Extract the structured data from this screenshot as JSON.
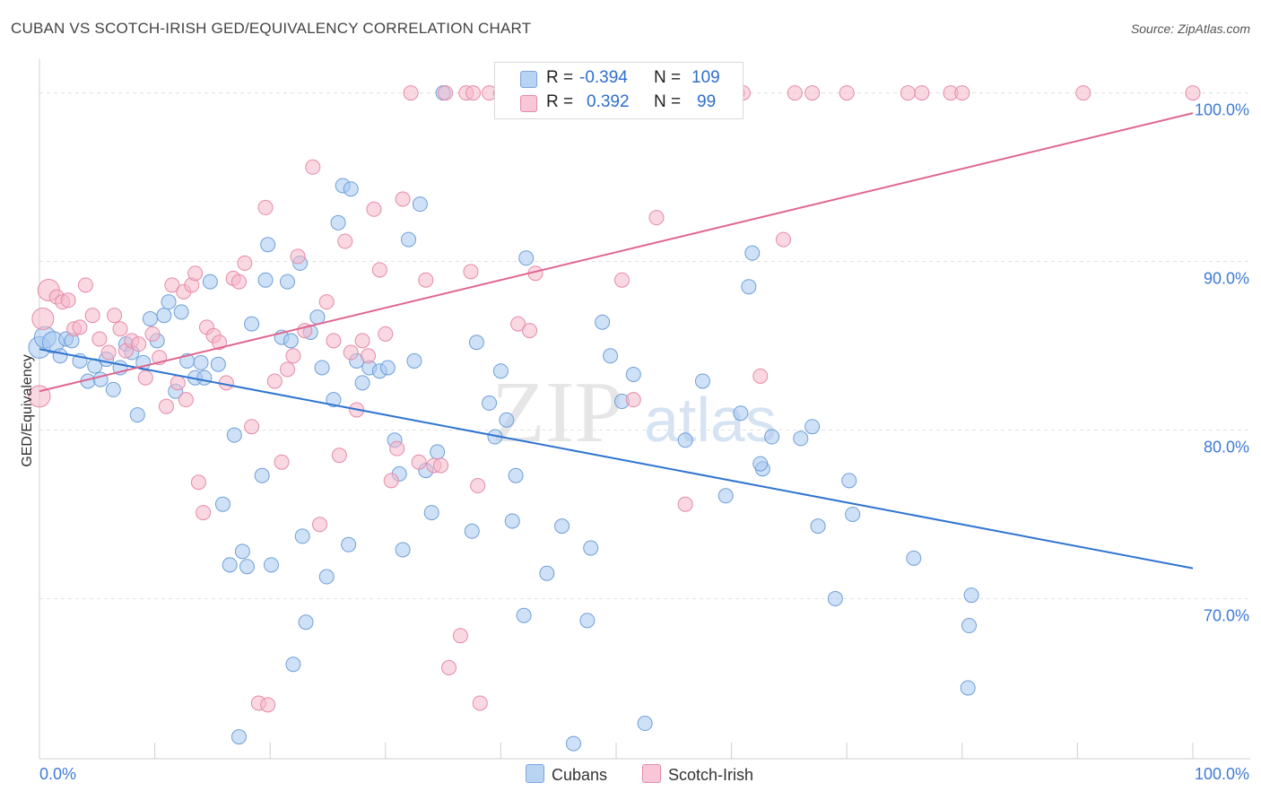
{
  "title": "CUBAN VS SCOTCH-IRISH GED/EQUIVALENCY CORRELATION CHART",
  "source": "Source: ZipAtlas.com",
  "watermark": {
    "zip": "ZIP",
    "atlas": "atlas"
  },
  "legend": {
    "rows": [
      {
        "r_label": "R =",
        "r_value": "-0.394",
        "n_label": "N =",
        "n_value": "109"
      },
      {
        "r_label": "R =",
        "r_value": "0.392",
        "n_label": "N =",
        "n_value": "99"
      }
    ]
  },
  "colors": {
    "cubans_fill": "#a8c8f0",
    "cubans_stroke": "#6f9fd8",
    "cubans_line": "#2f74d0",
    "scotch_fill": "#f5b8cb",
    "scotch_stroke": "#e58aa8",
    "scotch_line": "#e0648f",
    "axis_text": "#3d7bd6",
    "grid": "#e3e3e3"
  },
  "chart_data": {
    "type": "scatter",
    "title": "CUBAN VS SCOTCH-IRISH GED/EQUIVALENCY CORRELATION CHART",
    "xlabel": "",
    "ylabel": "GED/Equivalency",
    "xlim": [
      0,
      100
    ],
    "ylim": [
      60.5,
      102
    ],
    "x_tick_labels": [
      "0.0%",
      "100.0%"
    ],
    "y_ticks": [
      70,
      80,
      90,
      100
    ],
    "y_tick_labels": [
      "70.0%",
      "80.0%",
      "90.0%",
      "100.0%"
    ],
    "series": [
      {
        "name": "Cubans",
        "r": -0.394,
        "n": 109,
        "trend": {
          "x": [
            0,
            100
          ],
          "y": [
            84.8,
            71.8
          ]
        },
        "points": [
          [
            0.0,
            84.9
          ],
          [
            0.5,
            85.5
          ],
          [
            1.2,
            85.2
          ],
          [
            1.8,
            84.4
          ],
          [
            2.3,
            85.4
          ],
          [
            2.8,
            85.3
          ],
          [
            3.5,
            84.1
          ],
          [
            4.2,
            82.9
          ],
          [
            4.8,
            83.8
          ],
          [
            5.3,
            83.0
          ],
          [
            5.8,
            84.2
          ],
          [
            6.4,
            82.4
          ],
          [
            7.0,
            83.7
          ],
          [
            7.5,
            85.1
          ],
          [
            8.0,
            84.6
          ],
          [
            8.5,
            80.9
          ],
          [
            9.0,
            84.0
          ],
          [
            9.6,
            86.6
          ],
          [
            10.2,
            85.3
          ],
          [
            10.8,
            86.8
          ],
          [
            11.2,
            87.6
          ],
          [
            11.8,
            82.3
          ],
          [
            12.3,
            87.0
          ],
          [
            12.8,
            84.1
          ],
          [
            13.5,
            83.1
          ],
          [
            14.0,
            84.0
          ],
          [
            14.3,
            83.1
          ],
          [
            14.8,
            88.8
          ],
          [
            15.5,
            83.9
          ],
          [
            15.9,
            75.6
          ],
          [
            16.5,
            72.0
          ],
          [
            16.9,
            79.7
          ],
          [
            17.3,
            61.8
          ],
          [
            17.6,
            72.8
          ],
          [
            18.0,
            71.9
          ],
          [
            18.4,
            86.3
          ],
          [
            19.3,
            77.3
          ],
          [
            19.6,
            88.9
          ],
          [
            19.8,
            91.0
          ],
          [
            20.1,
            72.0
          ],
          [
            21.0,
            85.5
          ],
          [
            21.5,
            88.8
          ],
          [
            21.8,
            85.3
          ],
          [
            22.0,
            66.1
          ],
          [
            22.6,
            89.9
          ],
          [
            22.8,
            73.7
          ],
          [
            23.1,
            68.6
          ],
          [
            23.5,
            85.8
          ],
          [
            24.1,
            86.7
          ],
          [
            24.5,
            83.7
          ],
          [
            24.9,
            71.3
          ],
          [
            25.5,
            81.8
          ],
          [
            25.9,
            92.3
          ],
          [
            26.3,
            94.5
          ],
          [
            26.8,
            73.2
          ],
          [
            27.0,
            94.3
          ],
          [
            27.5,
            84.1
          ],
          [
            28.0,
            82.8
          ],
          [
            28.6,
            83.7
          ],
          [
            29.5,
            83.5
          ],
          [
            30.2,
            83.7
          ],
          [
            30.8,
            79.4
          ],
          [
            31.2,
            77.4
          ],
          [
            31.5,
            72.9
          ],
          [
            32.0,
            91.3
          ],
          [
            32.5,
            84.1
          ],
          [
            33.0,
            93.4
          ],
          [
            33.5,
            77.6
          ],
          [
            34.0,
            75.1
          ],
          [
            34.5,
            78.7
          ],
          [
            35.0,
            100.0
          ],
          [
            37.5,
            74.0
          ],
          [
            37.9,
            85.2
          ],
          [
            39.0,
            81.6
          ],
          [
            39.5,
            79.6
          ],
          [
            40.0,
            83.5
          ],
          [
            40.5,
            80.6
          ],
          [
            41.0,
            74.6
          ],
          [
            41.3,
            77.3
          ],
          [
            42.0,
            69.0
          ],
          [
            42.2,
            90.2
          ],
          [
            44.0,
            71.5
          ],
          [
            45.3,
            74.3
          ],
          [
            46.3,
            61.4
          ],
          [
            47.5,
            68.7
          ],
          [
            47.8,
            73.0
          ],
          [
            48.8,
            86.4
          ],
          [
            49.5,
            84.4
          ],
          [
            50.5,
            81.7
          ],
          [
            51.5,
            83.3
          ],
          [
            52.5,
            62.6
          ],
          [
            56.0,
            79.4
          ],
          [
            57.5,
            82.9
          ],
          [
            59.5,
            76.1
          ],
          [
            60.8,
            81.0
          ],
          [
            61.8,
            90.5
          ],
          [
            61.5,
            88.5
          ],
          [
            62.7,
            77.7
          ],
          [
            62.5,
            78.0
          ],
          [
            63.5,
            79.6
          ],
          [
            66.0,
            79.5
          ],
          [
            67.0,
            80.2
          ],
          [
            67.5,
            74.3
          ],
          [
            69.0,
            70.0
          ],
          [
            70.2,
            77.0
          ],
          [
            70.5,
            75.0
          ],
          [
            75.8,
            72.4
          ],
          [
            80.5,
            64.7
          ],
          [
            80.6,
            68.4
          ],
          [
            80.8,
            70.2
          ]
        ]
      },
      {
        "name": "Scotch-Irish",
        "r": 0.392,
        "n": 99,
        "trend": {
          "x": [
            0,
            100
          ],
          "y": [
            82.3,
            98.8
          ]
        },
        "points": [
          [
            0.0,
            82.0
          ],
          [
            0.3,
            86.6
          ],
          [
            0.8,
            88.3
          ],
          [
            1.5,
            87.9
          ],
          [
            2.0,
            87.6
          ],
          [
            2.5,
            87.7
          ],
          [
            3.0,
            86.0
          ],
          [
            3.5,
            86.1
          ],
          [
            4.0,
            88.6
          ],
          [
            4.6,
            86.8
          ],
          [
            5.2,
            85.4
          ],
          [
            6.0,
            84.6
          ],
          [
            6.5,
            86.8
          ],
          [
            7.0,
            86.0
          ],
          [
            7.5,
            84.7
          ],
          [
            8.0,
            85.3
          ],
          [
            8.6,
            85.1
          ],
          [
            9.2,
            83.1
          ],
          [
            9.8,
            85.7
          ],
          [
            10.4,
            84.3
          ],
          [
            11.0,
            81.4
          ],
          [
            11.5,
            88.6
          ],
          [
            12.0,
            82.8
          ],
          [
            12.5,
            88.2
          ],
          [
            12.7,
            81.8
          ],
          [
            13.2,
            88.6
          ],
          [
            13.5,
            89.3
          ],
          [
            13.8,
            76.9
          ],
          [
            14.2,
            75.1
          ],
          [
            14.5,
            86.1
          ],
          [
            15.1,
            85.6
          ],
          [
            15.6,
            85.2
          ],
          [
            16.2,
            82.8
          ],
          [
            16.8,
            89.0
          ],
          [
            17.3,
            88.8
          ],
          [
            17.8,
            89.9
          ],
          [
            18.4,
            80.2
          ],
          [
            19.0,
            63.8
          ],
          [
            19.6,
            93.2
          ],
          [
            19.8,
            63.7
          ],
          [
            20.4,
            82.9
          ],
          [
            21.0,
            78.1
          ],
          [
            21.5,
            83.6
          ],
          [
            22.0,
            84.4
          ],
          [
            22.4,
            90.3
          ],
          [
            23.0,
            85.9
          ],
          [
            23.7,
            95.6
          ],
          [
            24.3,
            74.4
          ],
          [
            24.9,
            87.6
          ],
          [
            25.5,
            85.3
          ],
          [
            26.0,
            78.5
          ],
          [
            26.5,
            91.2
          ],
          [
            27.0,
            84.6
          ],
          [
            27.5,
            81.2
          ],
          [
            28.0,
            85.3
          ],
          [
            28.5,
            84.4
          ],
          [
            29.0,
            93.1
          ],
          [
            29.5,
            89.5
          ],
          [
            30.0,
            85.7
          ],
          [
            30.5,
            77.0
          ],
          [
            31.0,
            78.9
          ],
          [
            31.5,
            93.7
          ],
          [
            32.2,
            100.0
          ],
          [
            32.9,
            78.1
          ],
          [
            33.5,
            88.9
          ],
          [
            34.2,
            77.9
          ],
          [
            34.8,
            77.9
          ],
          [
            35.2,
            100.0
          ],
          [
            35.5,
            65.9
          ],
          [
            36.5,
            67.8
          ],
          [
            37.0,
            100.0
          ],
          [
            37.4,
            89.4
          ],
          [
            37.6,
            100.0
          ],
          [
            38.0,
            76.7
          ],
          [
            38.2,
            63.8
          ],
          [
            39.0,
            100.0
          ],
          [
            40.0,
            100.0
          ],
          [
            41.5,
            86.3
          ],
          [
            42.5,
            85.9
          ],
          [
            43.0,
            89.3
          ],
          [
            44.5,
            100.0
          ],
          [
            46.3,
            100.0
          ],
          [
            50.5,
            88.9
          ],
          [
            51.5,
            81.8
          ],
          [
            53.5,
            92.6
          ],
          [
            56.0,
            75.6
          ],
          [
            60.5,
            100.0
          ],
          [
            61.0,
            100.0
          ],
          [
            62.5,
            83.2
          ],
          [
            64.5,
            91.3
          ],
          [
            65.5,
            100.0
          ],
          [
            67.0,
            100.0
          ],
          [
            70.0,
            100.0
          ],
          [
            75.3,
            100.0
          ],
          [
            76.5,
            100.0
          ],
          [
            79.0,
            100.0
          ],
          [
            80.0,
            100.0
          ],
          [
            90.5,
            100.0
          ],
          [
            100.0,
            100.0
          ]
        ]
      }
    ]
  }
}
